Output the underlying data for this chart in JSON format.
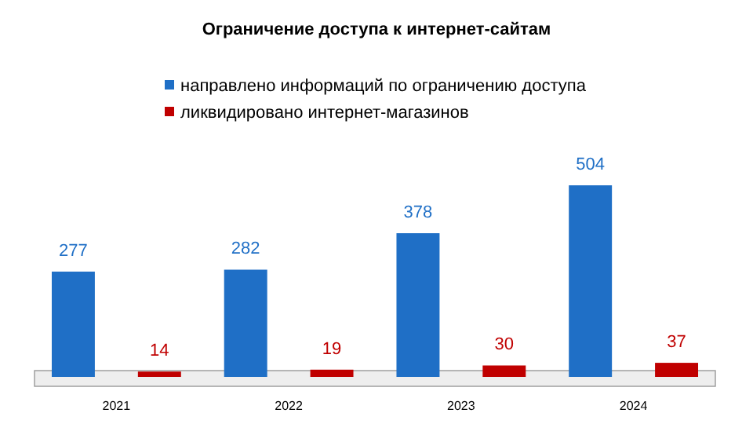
{
  "chart_data": {
    "type": "bar",
    "title": "Ограничение доступа к интернет-сайтам",
    "categories": [
      "2021",
      "2022",
      "2023",
      "2024"
    ],
    "series": [
      {
        "name": "направлено информаций по ограничению доступа",
        "color": "#1f6fc6",
        "values": [
          277,
          282,
          378,
          504
        ]
      },
      {
        "name": "ликвидировано интернет-магазинов",
        "color": "#c00000",
        "values": [
          14,
          19,
          30,
          37
        ]
      }
    ],
    "data_labels": true,
    "relative": false,
    "legend": "top",
    "grid": false
  }
}
